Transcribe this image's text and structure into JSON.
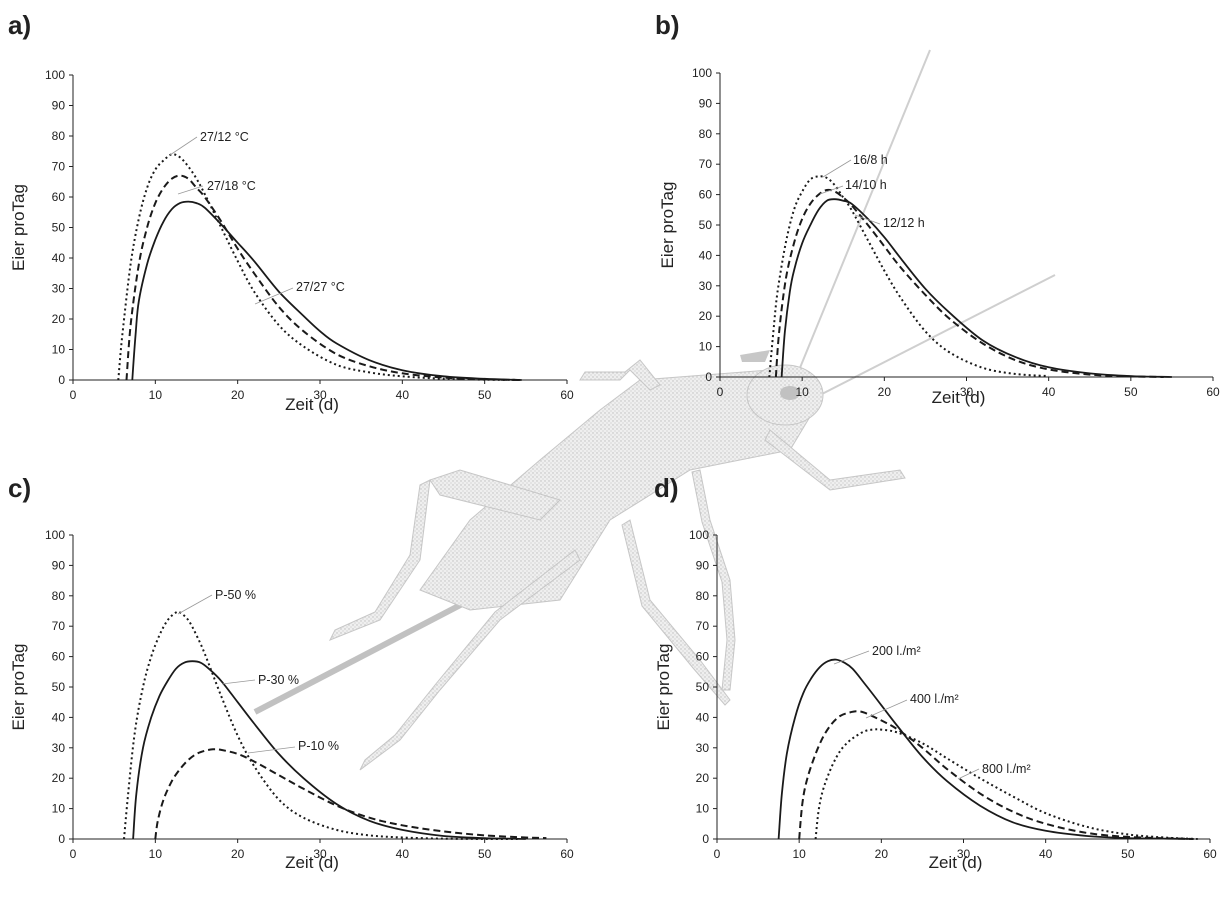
{
  "chart_data": [
    {
      "type": "line",
      "panel_label": "a)",
      "xlabel": "Zeit (d)",
      "ylabel": "Eier proTag",
      "xlim": [
        0,
        60
      ],
      "ylim": [
        0,
        100
      ],
      "xticks": [
        0,
        10,
        20,
        30,
        40,
        50,
        60
      ],
      "yticks": [
        0,
        10,
        20,
        30,
        40,
        50,
        60,
        70,
        80,
        90,
        100
      ],
      "grid": false,
      "legend": "none",
      "series": [
        {
          "name": "27/12 °C",
          "style": "dotted",
          "x": [
            5.5,
            6,
            7,
            8,
            9,
            10,
            11,
            12,
            13,
            14,
            15,
            16,
            18,
            20,
            22,
            25,
            28,
            32,
            36,
            40,
            45,
            50,
            54.5
          ],
          "values": [
            0,
            15,
            38,
            53,
            63,
            69,
            72,
            74,
            73,
            70,
            66,
            61,
            50,
            39,
            29,
            18,
            11,
            5,
            2.5,
            1.2,
            0.4,
            0.1,
            0
          ]
        },
        {
          "name": "27/18 °C",
          "style": "dashed",
          "x": [
            6.5,
            7,
            8,
            9,
            10,
            11,
            12,
            13,
            14,
            15,
            16,
            18,
            20,
            22,
            25,
            28,
            32,
            36,
            40,
            45,
            50,
            54.5
          ],
          "values": [
            0,
            18,
            38,
            50,
            58,
            63,
            66,
            67,
            66,
            63,
            60,
            52,
            43,
            35,
            24,
            16,
            8.5,
            4.5,
            2.2,
            0.8,
            0.2,
            0
          ]
        },
        {
          "name": "27/27 °C",
          "style": "solid",
          "x": [
            7.2,
            7.6,
            8,
            9,
            10,
            11,
            12,
            13,
            14,
            15,
            16,
            18,
            20,
            22,
            25,
            28,
            30,
            32,
            36,
            40,
            45,
            50,
            54.5
          ],
          "values": [
            0,
            15,
            26,
            38,
            46,
            52,
            56,
            58,
            58.5,
            58,
            56.5,
            51,
            45,
            39,
            29,
            21,
            16,
            12,
            6.5,
            3.2,
            1.2,
            0.4,
            0
          ]
        }
      ],
      "annotations": [
        "27/12 °C",
        "27/18 °C",
        "27/27 °C"
      ]
    },
    {
      "type": "line",
      "panel_label": "b)",
      "xlabel": "Zeit (d)",
      "ylabel": "Eier proTag",
      "xlim": [
        0,
        60
      ],
      "ylim": [
        0,
        100
      ],
      "xticks": [
        0,
        10,
        20,
        30,
        40,
        50,
        60
      ],
      "yticks": [
        0,
        10,
        20,
        30,
        40,
        50,
        60,
        70,
        80,
        90,
        100
      ],
      "grid": false,
      "legend": "none",
      "series": [
        {
          "name": "16/8 h",
          "style": "dotted",
          "x": [
            6,
            6.5,
            7,
            8,
            9,
            10,
            11,
            12,
            13,
            14,
            15,
            16,
            18,
            20,
            22,
            25,
            28,
            32,
            36,
            40
          ],
          "values": [
            0,
            15,
            28,
            44,
            55,
            61,
            65,
            66,
            65.5,
            63,
            59,
            55,
            45,
            35,
            26,
            15,
            8,
            3,
            1,
            0.3
          ]
        },
        {
          "name": "14/10 h",
          "style": "dashed",
          "x": [
            6.8,
            7.2,
            8,
            9,
            10,
            11,
            12,
            13,
            14,
            15,
            16,
            18,
            20,
            22,
            25,
            28,
            32,
            36,
            40,
            45,
            50,
            54
          ],
          "values": [
            0,
            15,
            32,
            44,
            52,
            57,
            60,
            61.5,
            61,
            59,
            56.5,
            50,
            43,
            36,
            27,
            19,
            11,
            5.5,
            2.5,
            0.8,
            0.2,
            0
          ]
        },
        {
          "name": "12/12 h",
          "style": "solid",
          "x": [
            7.5,
            7.9,
            8.5,
            9,
            10,
            11,
            12,
            13,
            14,
            15,
            16,
            18,
            20,
            22,
            25,
            28,
            32,
            36,
            40,
            45,
            50,
            55
          ],
          "values": [
            0,
            15,
            28,
            35,
            44,
            50,
            55,
            58,
            58.5,
            58,
            57,
            52,
            46,
            39,
            29,
            21,
            12,
            6.5,
            3.2,
            1.2,
            0.3,
            0
          ]
        }
      ],
      "annotations": [
        "16/8 h",
        "14/10 h",
        "12/12 h"
      ]
    },
    {
      "type": "line",
      "panel_label": "c)",
      "xlabel": "Zeit (d)",
      "ylabel": "Eier proTag",
      "xlim": [
        0,
        60
      ],
      "ylim": [
        0,
        100
      ],
      "xticks": [
        0,
        10,
        20,
        30,
        40,
        50,
        60
      ],
      "yticks": [
        0,
        10,
        20,
        30,
        40,
        50,
        60,
        70,
        80,
        90,
        100
      ],
      "grid": false,
      "legend": "none",
      "series": [
        {
          "name": "P-50 %",
          "style": "dotted",
          "x": [
            6.2,
            6.7,
            7.5,
            8.5,
            9.5,
            10.5,
            11.5,
            12.5,
            13,
            14,
            15,
            16,
            18,
            20,
            22,
            25,
            28,
            32,
            36,
            40,
            45,
            50,
            54
          ],
          "values": [
            0,
            15,
            35,
            50,
            60,
            67,
            72,
            74.5,
            74.5,
            72,
            67,
            61,
            47,
            34,
            24,
            13,
            7,
            3,
            1.2,
            0.5,
            0.1,
            0,
            0
          ]
        },
        {
          "name": "P-30 %",
          "style": "solid",
          "x": [
            7.3,
            7.7,
            8.5,
            9.5,
            10.5,
            11.5,
            12.5,
            13.5,
            14.5,
            15.5,
            16.5,
            18,
            20,
            22,
            25,
            28,
            32,
            36,
            40,
            45,
            50,
            55
          ],
          "values": [
            0,
            15,
            30,
            40,
            47,
            52,
            56,
            58,
            58.5,
            58,
            56,
            52,
            45,
            38,
            28,
            20,
            11.5,
            6,
            3,
            1,
            0.3,
            0
          ]
        },
        {
          "name": "P-10 %",
          "style": "dashed",
          "x": [
            10,
            10.3,
            11,
            12,
            13,
            14,
            15,
            16,
            17,
            18,
            20,
            22,
            25,
            28,
            32,
            36,
            40,
            45,
            50,
            55,
            57.5
          ],
          "values": [
            0,
            6,
            13,
            19,
            23,
            26,
            28,
            29,
            29.5,
            29.3,
            28,
            25.5,
            21,
            16.5,
            11,
            7,
            4.5,
            2.5,
            1.2,
            0.5,
            0.3
          ]
        }
      ],
      "annotations": [
        "P-50 %",
        "P-30 %",
        "P-10 %"
      ]
    },
    {
      "type": "line",
      "panel_label": "d)",
      "xlabel": "Zeit (d)",
      "ylabel": "Eier proTag",
      "xlim": [
        0,
        60
      ],
      "ylim": [
        0,
        100
      ],
      "xticks": [
        0,
        10,
        20,
        30,
        40,
        50,
        60
      ],
      "yticks": [
        0,
        10,
        20,
        30,
        40,
        50,
        60,
        70,
        80,
        90,
        100
      ],
      "grid": false,
      "legend": "none",
      "series": [
        {
          "name": "200 l./m²",
          "style": "solid",
          "x": [
            7.5,
            7.9,
            8.5,
            9.5,
            10.5,
            11.5,
            12.5,
            13.5,
            14.5,
            15.5,
            16.5,
            18,
            20,
            22,
            25,
            28,
            32,
            36,
            40,
            45,
            50,
            55,
            58
          ],
          "values": [
            0,
            15,
            28,
            40,
            48,
            53,
            56.5,
            58.5,
            59,
            58,
            56,
            51,
            44,
            37,
            27,
            19,
            11,
            5.5,
            2.7,
            1,
            0.3,
            0.1,
            0
          ]
        },
        {
          "name": "400 l./m²",
          "style": "dashed",
          "x": [
            10,
            10.4,
            11,
            12,
            13,
            14,
            15,
            16,
            17,
            18,
            20,
            22,
            25,
            28,
            32,
            36,
            40,
            45,
            50,
            55,
            58
          ],
          "values": [
            0,
            12,
            20,
            28,
            34,
            38,
            40.5,
            41.5,
            42,
            41.5,
            39,
            36,
            30,
            23,
            15,
            9,
            5,
            2,
            0.7,
            0.2,
            0
          ]
        },
        {
          "name": "800 l./m²",
          "style": "dotted",
          "x": [
            12,
            12.4,
            13,
            14,
            15,
            16,
            17,
            18,
            19,
            20,
            22,
            25,
            28,
            32,
            36,
            40,
            45,
            50,
            55,
            58.5
          ],
          "values": [
            0,
            10,
            17,
            24,
            29,
            32,
            34,
            35.5,
            36,
            36,
            35,
            31.5,
            26.5,
            20,
            14,
            8.5,
            4,
            1.5,
            0.4,
            0
          ]
        }
      ],
      "annotations": [
        "200 l./m²",
        "400 l./m²",
        "800 l./m²"
      ]
    }
  ],
  "illustration": {
    "icon": "cricket-icon",
    "color": "#b0b0b0",
    "description": "stippled cricket drawing overlaid in background"
  },
  "colors": {
    "line": "#1a1a1a",
    "axis": "#222222",
    "annotation_leader": "#999999"
  }
}
